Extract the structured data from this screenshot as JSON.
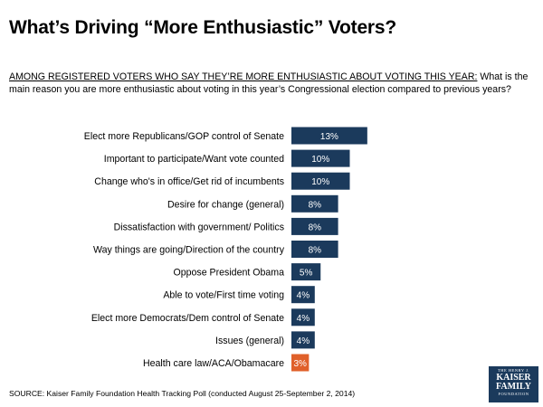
{
  "header": {
    "title": "What’s Driving “More Enthusiastic” Voters?"
  },
  "question": {
    "prefix": "AMONG REGISTERED VOTERS WHO SAY THEY’RE MORE ENTHUSIASTIC ABOUT VOTING THIS YEAR:",
    "text": "What is the main reason you are more enthusiastic about voting in this year’s Congressional election compared to previous years?"
  },
  "colors": {
    "primary_bar": "#1b3a5c",
    "highlight_bar": "#e0602a",
    "label_text": "#ffffff"
  },
  "chart_data": {
    "type": "bar",
    "orientation": "horizontal",
    "title": "What’s Driving “More Enthusiastic” Voters?",
    "xlabel": "",
    "ylabel": "",
    "xlim": [
      0,
      13
    ],
    "grid": false,
    "categories": [
      "Elect more Republicans/GOP control of Senate",
      "Important to participate/Want vote counted",
      "Change who's in office/Get rid of incumbents",
      "Desire for change (general)",
      "Dissatisfaction with government/ Politics ",
      "Way things are going/Direction of the country",
      "Oppose President Obama",
      "Able to vote/First time voting",
      "Elect more Democrats/Dem control of Senate",
      "Issues (general)",
      "Health care law/ACA/Obamacare"
    ],
    "values": [
      13,
      10,
      10,
      8,
      8,
      8,
      5,
      4,
      4,
      4,
      3
    ],
    "data_labels": [
      "13%",
      "10%",
      "10%",
      "8%",
      "8%",
      "8%",
      "5%",
      "4%",
      "4%",
      "4%",
      "3%"
    ],
    "highlight_index": 10
  },
  "footer": {
    "source": "SOURCE: Kaiser Family Foundation Health Tracking Poll (conducted August 25-September 2, 2014)"
  },
  "logo": {
    "line1": "THE HENRY J.",
    "line2": "KAISER",
    "line3": "FAMILY",
    "line4": "FOUNDATION"
  }
}
